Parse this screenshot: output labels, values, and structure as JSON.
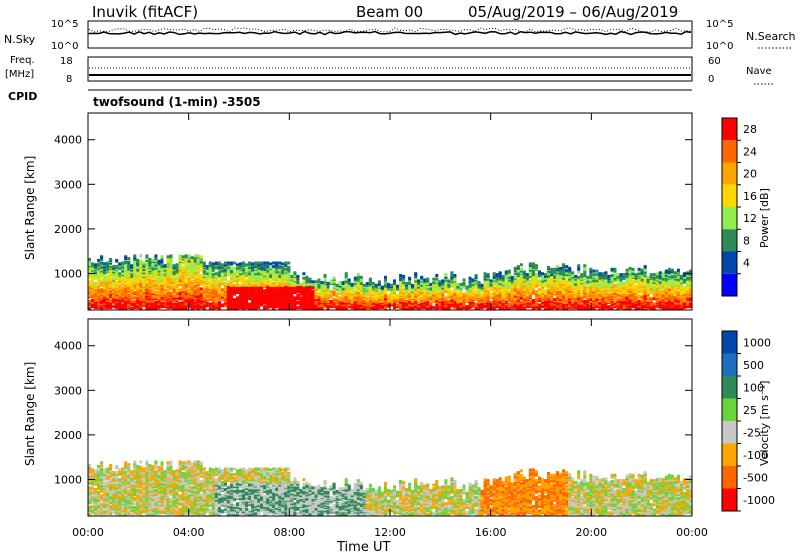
{
  "header": {
    "station": "Inuvik (fitACF)",
    "beam": "Beam 00",
    "dates": "05/Aug/2019 – 06/Aug/2019"
  },
  "summary": {
    "nsky_label": "N.Sky",
    "nsearch_label": "N.Search",
    "freq_label_1": "Freq.",
    "freq_label_2": "[MHz]",
    "cpid_label": "CPID",
    "nave_label": "Nave",
    "cpid_text": "twofsound (1-min) -3505",
    "left_ticks_top": [
      "10^5",
      "10^0"
    ],
    "right_ticks_top": [
      "10^5",
      "10^0"
    ],
    "left_ticks_freq": [
      "18",
      "8"
    ],
    "right_ticks_nave": [
      "60",
      "0"
    ]
  },
  "colorbars": {
    "power": {
      "label": "Power [dB]",
      "ticks": [
        "28",
        "24",
        "20",
        "16",
        "12",
        "8",
        "4"
      ],
      "colors": [
        "#ff0000",
        "#ff6600",
        "#ffa500",
        "#ffd700",
        "#90ee50",
        "#2e8b57",
        "#0047ab",
        "#0000ff"
      ]
    },
    "velocity": {
      "label": "Velocity [m s⁻¹]",
      "ticks": [
        "1000",
        "500",
        "100",
        "25",
        "-25",
        "-100",
        "-500",
        "-1000"
      ],
      "colors": [
        "#0047ab",
        "#1f6fbf",
        "#2e8b57",
        "#6ad43c",
        "#c8c8c8",
        "#ffa500",
        "#ff6600",
        "#ff0000"
      ]
    }
  },
  "chart_data": [
    {
      "type": "heatmap",
      "name": "power",
      "ylabel": "Slant Range [km]",
      "xlabel": "",
      "x_ticks": [
        "00:00",
        "04:00",
        "08:00",
        "12:00",
        "16:00",
        "20:00",
        "00:00"
      ],
      "y_ticks": [
        1000,
        2000,
        3000,
        4000
      ],
      "ylim": [
        180,
        4600
      ],
      "xlim_hours": [
        0,
        24
      ],
      "clim": [
        0,
        30
      ]
    },
    {
      "type": "heatmap",
      "name": "velocity",
      "ylabel": "Slant Range [km]",
      "xlabel": "Time UT",
      "x_ticks": [
        "00:00",
        "04:00",
        "08:00",
        "12:00",
        "16:00",
        "20:00",
        "00:00"
      ],
      "y_ticks": [
        1000,
        2000,
        3000,
        4000
      ],
      "ylim": [
        180,
        4600
      ],
      "xlim_hours": [
        0,
        24
      ],
      "clim": [
        -1000,
        1000
      ]
    }
  ]
}
